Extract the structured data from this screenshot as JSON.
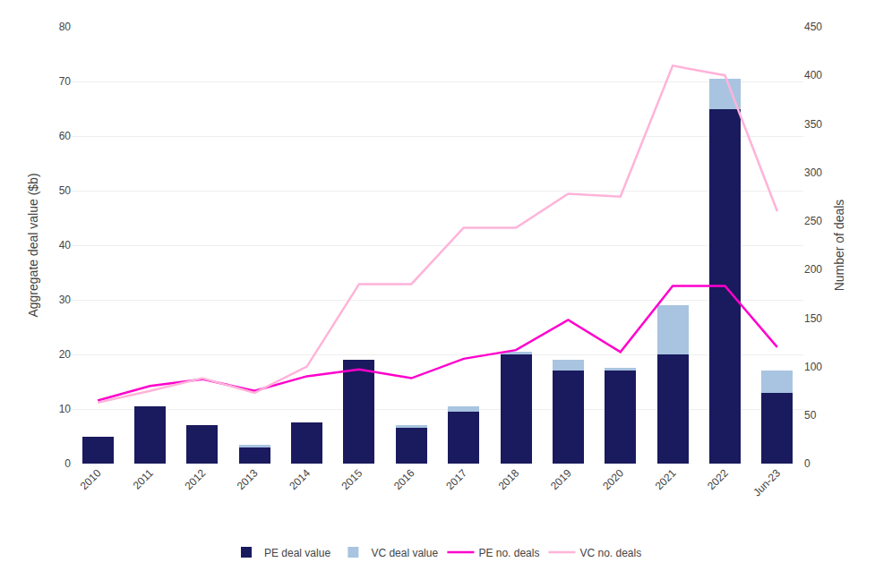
{
  "chart_data": {
    "type": "bar",
    "stacked": true,
    "categories": [
      "2010",
      "2011",
      "2012",
      "2013",
      "2014",
      "2015",
      "2016",
      "2017",
      "2018",
      "2019",
      "2020",
      "2021",
      "2022",
      "Jun-23"
    ],
    "series": [
      {
        "name": "PE deal value",
        "type": "bar",
        "color": "#1a1a5e",
        "values": [
          5,
          10.5,
          7,
          3,
          7.5,
          19,
          6.5,
          9.5,
          20,
          17,
          17,
          20,
          65,
          13
        ]
      },
      {
        "name": "VC deal value",
        "type": "bar",
        "color": "#a8c4e0",
        "values": [
          0,
          0,
          0,
          0.5,
          0,
          0,
          0.5,
          1,
          0.5,
          2,
          0.5,
          9,
          5.5,
          4
        ]
      },
      {
        "name": "PE no. deals",
        "type": "line",
        "axis": "y2",
        "color": "#ff00cc",
        "values": [
          65,
          80,
          87,
          75,
          90,
          97,
          88,
          108,
          117,
          148,
          115,
          183,
          183,
          120
        ]
      },
      {
        "name": "VC no. deals",
        "type": "line",
        "axis": "y2",
        "color": "#ffb3d9",
        "values": [
          63,
          75,
          88,
          73,
          100,
          185,
          185,
          243,
          243,
          278,
          275,
          410,
          400,
          260
        ]
      }
    ],
    "ylabel": "Aggregate deal value ($b)",
    "y2label": "Number of deals",
    "ylim": [
      0,
      80
    ],
    "yticks": [
      0,
      10,
      20,
      30,
      40,
      50,
      60,
      70,
      80
    ],
    "y2lim": [
      0,
      450
    ],
    "y2ticks": [
      0,
      50,
      100,
      150,
      200,
      250,
      300,
      350,
      400,
      450
    ],
    "grid": true,
    "legend": "bottom"
  }
}
